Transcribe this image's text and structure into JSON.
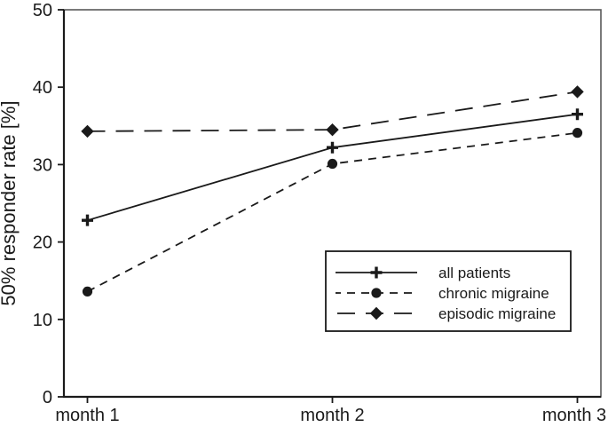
{
  "figure": {
    "background": "#ffffff",
    "text_color": "#1a1a1a",
    "box_border_color": "#595959"
  },
  "chart_data": {
    "type": "line",
    "title": "",
    "xlabel": "",
    "ylabel": "50% responder rate [%]",
    "categories": [
      "month 1",
      "month 2",
      "month 3"
    ],
    "ylim": [
      0,
      50
    ],
    "y_ticks": [
      0,
      10,
      20,
      30,
      40,
      50
    ],
    "grid": false,
    "legend_position": "inside-lower-right",
    "series": [
      {
        "name": "all patients",
        "marker": "plus",
        "line_style": "solid",
        "color": "#1a1a1a",
        "values": [
          22.8,
          32.2,
          36.5
        ]
      },
      {
        "name": "chronic migraine",
        "marker": "circle",
        "line_style": "dashed",
        "color": "#1a1a1a",
        "values": [
          13.6,
          30.1,
          34.1
        ]
      },
      {
        "name": "episodic migraine",
        "marker": "diamond",
        "line_style": "long-dash",
        "color": "#1a1a1a",
        "values": [
          34.3,
          34.5,
          39.4
        ]
      }
    ]
  }
}
